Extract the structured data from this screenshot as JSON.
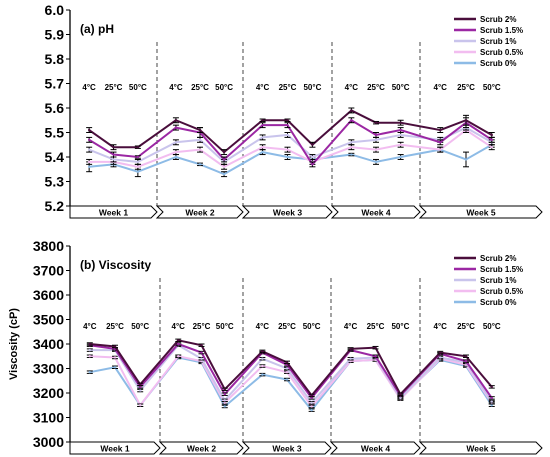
{
  "chart_data": [
    {
      "type": "line",
      "panel_title": "(a) pH",
      "ylabel": "",
      "ylim": [
        5.2,
        6.0
      ],
      "yticks": [
        "5.2",
        "5.3",
        "5.4",
        "5.5",
        "5.6",
        "5.7",
        "5.8",
        "5.9",
        "6.0"
      ],
      "groups": [
        "Week 1",
        "Week 2",
        "Week 3",
        "Week 4",
        "Week 5"
      ],
      "temperatures": [
        "4°C",
        "25°C",
        "50°C"
      ],
      "legend_position": "top-right",
      "grid": false,
      "series": [
        {
          "name": "Scrub 2%",
          "color": "#4a0e3c",
          "values": [
            5.51,
            5.44,
            5.44,
            5.55,
            5.51,
            5.42,
            5.55,
            5.55,
            5.45,
            5.59,
            5.54,
            5.54,
            5.51,
            5.55,
            5.49
          ],
          "errors": [
            0.01,
            0.01,
            0.005,
            0.01,
            0.01,
            0.01,
            0.005,
            0.005,
            0.01,
            0.01,
            0.005,
            0.01,
            0.01,
            0.02,
            0.01
          ]
        },
        {
          "name": "Scrub 1.5%",
          "color": "#9b27a3",
          "values": [
            5.47,
            5.41,
            5.4,
            5.52,
            5.5,
            5.39,
            5.53,
            5.53,
            5.37,
            5.55,
            5.49,
            5.51,
            5.46,
            5.54,
            5.47
          ],
          "errors": [
            0.01,
            0.01,
            0.005,
            0.01,
            0.02,
            0.01,
            0.01,
            0.01,
            0.01,
            0.01,
            0.01,
            0.01,
            0.01,
            0.02,
            0.01
          ]
        },
        {
          "name": "Scrub 1%",
          "color": "#c9c4ec",
          "values": [
            5.43,
            5.39,
            5.38,
            5.46,
            5.47,
            5.38,
            5.48,
            5.49,
            5.4,
            5.46,
            5.47,
            5.49,
            5.47,
            5.52,
            5.46
          ],
          "errors": [
            0.01,
            0.01,
            0.01,
            0.01,
            0.01,
            0.01,
            0.01,
            0.01,
            0.01,
            0.01,
            0.01,
            0.01,
            0.01,
            0.01,
            0.01
          ]
        },
        {
          "name": "Scrub 0.5%",
          "color": "#f2bdf0",
          "values": [
            5.38,
            5.38,
            5.36,
            5.42,
            5.43,
            5.36,
            5.44,
            5.43,
            5.38,
            5.44,
            5.43,
            5.45,
            5.43,
            5.51,
            5.44
          ],
          "errors": [
            0.01,
            0.01,
            0.01,
            0.01,
            0.01,
            0.01,
            0.01,
            0.01,
            0.01,
            0.01,
            0.01,
            0.01,
            0.01,
            0.01,
            0.01
          ]
        },
        {
          "name": "Scrub 0%",
          "color": "#8dbbe6",
          "values": [
            5.36,
            5.37,
            5.34,
            5.4,
            5.37,
            5.33,
            5.42,
            5.4,
            5.39,
            5.41,
            5.38,
            5.4,
            5.43,
            5.39,
            5.45
          ],
          "errors": [
            0.02,
            0.01,
            0.02,
            0.01,
            0.005,
            0.01,
            0.01,
            0.01,
            0.01,
            0.005,
            0.01,
            0.01,
            0.01,
            0.03,
            0.01
          ]
        }
      ]
    },
    {
      "type": "line",
      "panel_title": "(b) Viscosity",
      "ylabel": "Viscosity (cP)",
      "ylim": [
        3000,
        3800
      ],
      "yticks": [
        "3000",
        "3100",
        "3200",
        "3300",
        "3400",
        "3500",
        "3600",
        "3700",
        "3800"
      ],
      "groups": [
        "Week 1",
        "Week 2",
        "Week 3",
        "Week 4",
        "Week 5"
      ],
      "temperatures": [
        "4°C",
        "25°C",
        "50°C"
      ],
      "legend_position": "top-right",
      "grid": false,
      "series": [
        {
          "name": "Scrub 2%",
          "color": "#4a0e3c",
          "values": [
            3400,
            3390,
            3235,
            3415,
            3395,
            3215,
            3370,
            3325,
            3190,
            3380,
            3385,
            3195,
            3365,
            3350,
            3225
          ],
          "errors": [
            5,
            5,
            5,
            5,
            5,
            5,
            5,
            5,
            5,
            5,
            5,
            5,
            5,
            5,
            5
          ]
        },
        {
          "name": "Scrub 1.5%",
          "color": "#9b27a3",
          "values": [
            3395,
            3380,
            3225,
            3400,
            3365,
            3195,
            3365,
            3315,
            3180,
            3375,
            3350,
            3190,
            3360,
            3330,
            3180
          ],
          "errors": [
            5,
            5,
            5,
            5,
            5,
            5,
            5,
            5,
            5,
            5,
            5,
            5,
            5,
            5,
            5
          ]
        },
        {
          "name": "Scrub 1%",
          "color": "#c9c4ec",
          "values": [
            3375,
            3375,
            3210,
            3395,
            3340,
            3170,
            3340,
            3300,
            3160,
            3340,
            3345,
            3180,
            3345,
            3325,
            3165
          ],
          "errors": [
            5,
            5,
            5,
            5,
            5,
            5,
            5,
            5,
            5,
            5,
            5,
            5,
            5,
            5,
            5
          ]
        },
        {
          "name": "Scrub 0.5%",
          "color": "#f2bdf0",
          "values": [
            3350,
            3345,
            3150,
            3350,
            3330,
            3160,
            3310,
            3285,
            3145,
            3330,
            3335,
            3175,
            3340,
            3315,
            3160
          ],
          "errors": [
            5,
            5,
            5,
            5,
            5,
            5,
            5,
            5,
            5,
            5,
            5,
            5,
            5,
            5,
            5
          ]
        },
        {
          "name": "Scrub 0%",
          "color": "#8dbbe6",
          "values": [
            3285,
            3305,
            3150,
            3345,
            3325,
            3145,
            3275,
            3255,
            3130,
            3330,
            3335,
            3180,
            3335,
            3310,
            3150
          ],
          "errors": [
            5,
            5,
            5,
            5,
            5,
            5,
            5,
            5,
            5,
            5,
            5,
            5,
            5,
            5,
            5
          ]
        }
      ]
    }
  ]
}
